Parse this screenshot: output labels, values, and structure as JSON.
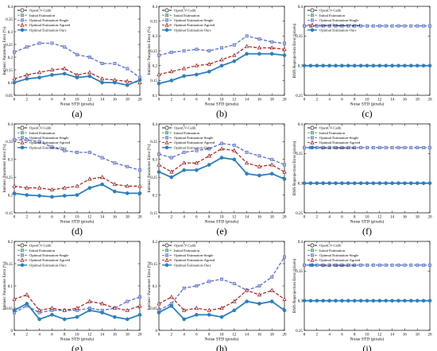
{
  "figure": {
    "legend_labels": [
      "OpenCV-Calib",
      "Initial Estimation",
      "Optimal Estimation-Single",
      "Optimal Estimation-Agreed",
      "Optimal Estimation-Ours"
    ],
    "series_colors": [
      "#1a1a1a",
      "#2eaa3a",
      "#5a6cc8",
      "#a01e1e",
      "#2a7fc0"
    ]
  },
  "chart_data": [
    {
      "panel": "(a)",
      "type": "line",
      "x": [
        0,
        2,
        4,
        6,
        8,
        10,
        12,
        14,
        16,
        18,
        20
      ],
      "ylim": [
        0.05,
        0.4
      ],
      "yticks": [
        0.05,
        0.1,
        0.15,
        0.2,
        0.25,
        0.3,
        0.35,
        0.4
      ],
      "ylabel": "Intrinsic Parameter Error (%)",
      "xlabel": "Noise STD (pixels)",
      "series": [
        {
          "name": "Optimal Estimation-Single",
          "values": [
            0.22,
            0.24,
            0.255,
            0.255,
            0.24,
            0.21,
            0.2,
            0.175,
            0.175,
            0.155,
            0.12
          ]
        },
        {
          "name": "Optimal Estimation-Agreed",
          "values": [
            0.115,
            0.13,
            0.14,
            0.15,
            0.155,
            0.13,
            0.14,
            0.115,
            0.11,
            0.105,
            0.1
          ]
        },
        {
          "name": "Optimal Estimation-Ours",
          "values": [
            0.1,
            0.115,
            0.12,
            0.13,
            0.135,
            0.12,
            0.125,
            0.1,
            0.1,
            0.09,
            0.11
          ]
        }
      ]
    },
    {
      "panel": "(b)",
      "type": "line",
      "x": [
        0,
        2,
        4,
        6,
        8,
        10,
        12,
        14,
        16,
        18,
        20
      ],
      "ylim": [
        0.1,
        0.4
      ],
      "yticks": [
        0.1,
        0.15,
        0.2,
        0.25,
        0.3,
        0.35,
        0.4
      ],
      "ylabel": "Intrinsic Parameter Error (%)",
      "xlabel": "Noise STD (pixels)",
      "series": [
        {
          "name": "Optimal Estimation-Single",
          "values": [
            0.235,
            0.245,
            0.25,
            0.255,
            0.25,
            0.26,
            0.27,
            0.3,
            0.29,
            0.28,
            0.275
          ]
        },
        {
          "name": "Optimal Estimation-Agreed",
          "values": [
            0.17,
            0.18,
            0.19,
            0.2,
            0.205,
            0.22,
            0.235,
            0.265,
            0.26,
            0.26,
            0.255
          ]
        },
        {
          "name": "Optimal Estimation-Ours",
          "values": [
            0.14,
            0.15,
            0.165,
            0.17,
            0.18,
            0.2,
            0.215,
            0.24,
            0.24,
            0.24,
            0.235
          ]
        }
      ]
    },
    {
      "panel": "(c)",
      "type": "line",
      "x": [
        0,
        1,
        2,
        3,
        4,
        5,
        6,
        7,
        8,
        9,
        10,
        11,
        12,
        13,
        14,
        15,
        16,
        17,
        18,
        19,
        20
      ],
      "ylim": [
        0.25,
        0.4
      ],
      "yticks": [
        0.25,
        0.3,
        0.35,
        0.4
      ],
      "ylabel": "RMS Reprojection Error (pixels)",
      "xlabel": "Noise STD (pixels)",
      "series": [
        {
          "name": "Optimal Estimation-Single",
          "constant": 0.367
        },
        {
          "name": "Optimal Estimation-Ours",
          "constant": 0.3
        }
      ]
    },
    {
      "panel": "(d)",
      "type": "line",
      "x": [
        0,
        2,
        4,
        6,
        8,
        10,
        12,
        14,
        16,
        18,
        20
      ],
      "ylim": [
        0.15,
        0.4
      ],
      "yticks": [
        0.15,
        0.2,
        0.25,
        0.3,
        0.35,
        0.4
      ],
      "ylabel": "Intrinsic Parameter Error (%)",
      "xlabel": "Noise STD (pixels)",
      "series": [
        {
          "name": "Optimal Estimation-Single",
          "values": [
            0.355,
            0.355,
            0.35,
            0.335,
            0.325,
            0.32,
            0.32,
            0.305,
            0.29,
            0.28,
            0.27
          ]
        },
        {
          "name": "Optimal Estimation-Agreed",
          "values": [
            0.225,
            0.22,
            0.22,
            0.215,
            0.22,
            0.225,
            0.245,
            0.25,
            0.23,
            0.225,
            0.225
          ]
        },
        {
          "name": "Optimal Estimation-Ours",
          "values": [
            0.205,
            0.2,
            0.198,
            0.195,
            0.198,
            0.2,
            0.22,
            0.23,
            0.21,
            0.205,
            0.205
          ]
        }
      ]
    },
    {
      "panel": "(e)",
      "type": "line",
      "x": [
        0,
        2,
        4,
        6,
        8,
        10,
        12,
        14,
        16,
        18,
        20
      ],
      "ylim": [
        0.15,
        0.4
      ],
      "yticks": [
        0.15,
        0.2,
        0.25,
        0.3,
        0.35,
        0.4
      ],
      "ylabel": "Intrinsic Parameter Error (%)",
      "xlabel": "Noise STD (pixels)",
      "series": [
        {
          "name": "Optimal Estimation-Single",
          "values": [
            0.315,
            0.305,
            0.32,
            0.325,
            0.33,
            0.345,
            0.34,
            0.32,
            0.31,
            0.3,
            0.285
          ]
        },
        {
          "name": "Optimal Estimation-Agreed",
          "values": [
            0.285,
            0.265,
            0.29,
            0.29,
            0.31,
            0.33,
            0.325,
            0.29,
            0.28,
            0.285,
            0.265
          ]
        },
        {
          "name": "Optimal Estimation-Ours",
          "values": [
            0.265,
            0.25,
            0.27,
            0.27,
            0.285,
            0.305,
            0.3,
            0.26,
            0.255,
            0.26,
            0.245
          ]
        }
      ]
    },
    {
      "panel": "(f)",
      "type": "line",
      "x": [
        0,
        1,
        2,
        3,
        4,
        5,
        6,
        7,
        8,
        9,
        10,
        11,
        12,
        13,
        14,
        15,
        16,
        17,
        18,
        19,
        20
      ],
      "ylim": [
        0.25,
        0.4
      ],
      "yticks": [
        0.25,
        0.3,
        0.35,
        0.4
      ],
      "ylabel": "RMS Reprojection Error (pixels)",
      "xlabel": "Noise STD (pixels)",
      "series": [
        {
          "name": "Optimal Estimation-Single",
          "constant": 0.36
        },
        {
          "name": "Optimal Estimation-Ours",
          "constant": 0.3
        }
      ]
    },
    {
      "panel": "(g)",
      "type": "line",
      "x": [
        0,
        2,
        4,
        6,
        8,
        10,
        12,
        14,
        16,
        18,
        20
      ],
      "ylim": [
        0.0,
        0.2
      ],
      "yticks": [
        0.0,
        0.05,
        0.1,
        0.15,
        0.2
      ],
      "ylabel": "Intrinsic Parameter Error (%)",
      "xlabel": "Noise STD (pixels)",
      "series": [
        {
          "name": "Optimal Estimation-Single",
          "values": [
            0.04,
            0.055,
            0.04,
            0.045,
            0.045,
            0.045,
            0.05,
            0.045,
            0.05,
            0.065,
            0.075
          ]
        },
        {
          "name": "Optimal Estimation-Agreed",
          "values": [
            0.07,
            0.08,
            0.045,
            0.05,
            0.045,
            0.05,
            0.065,
            0.06,
            0.05,
            0.045,
            0.055
          ]
        },
        {
          "name": "Optimal Estimation-Ours",
          "values": [
            0.045,
            0.06,
            0.025,
            0.035,
            0.025,
            0.03,
            0.045,
            0.04,
            0.03,
            0.025,
            0.035
          ]
        }
      ]
    },
    {
      "panel": "(h)",
      "type": "line",
      "x": [
        0,
        2,
        4,
        6,
        8,
        10,
        12,
        14,
        16,
        18,
        20
      ],
      "ylim": [
        0.0,
        0.2
      ],
      "yticks": [
        0.0,
        0.05,
        0.1,
        0.15,
        0.2
      ],
      "ylabel": "Intrinsic Parameter Error (%)",
      "xlabel": "Noise STD (pixels)",
      "series": [
        {
          "name": "Optimal Estimation-Single",
          "values": [
            0.045,
            0.06,
            0.095,
            0.1,
            0.11,
            0.115,
            0.105,
            0.09,
            0.1,
            0.12,
            0.165
          ]
        },
        {
          "name": "Optimal Estimation-Agreed",
          "values": [
            0.06,
            0.075,
            0.045,
            0.05,
            0.045,
            0.05,
            0.065,
            0.09,
            0.08,
            0.09,
            0.07
          ]
        },
        {
          "name": "Optimal Estimation-Ours",
          "values": [
            0.04,
            0.055,
            0.025,
            0.035,
            0.035,
            0.03,
            0.045,
            0.065,
            0.06,
            0.065,
            0.045
          ]
        }
      ]
    },
    {
      "panel": "(i)",
      "type": "line",
      "x": [
        0,
        1,
        2,
        3,
        4,
        5,
        6,
        7,
        8,
        9,
        10,
        11,
        12,
        13,
        14,
        15,
        16,
        17,
        18,
        19,
        20
      ],
      "ylim": [
        0.25,
        0.4
      ],
      "yticks": [
        0.25,
        0.3,
        0.35,
        0.4
      ],
      "ylabel": "RMS Reprojection Error (pixels)",
      "xlabel": "Noise STD (pixels)",
      "series": [
        {
          "name": "Optimal Estimation-Single",
          "constant": 0.36
        },
        {
          "name": "Optimal Estimation-Ours",
          "constant": 0.3
        }
      ]
    }
  ]
}
